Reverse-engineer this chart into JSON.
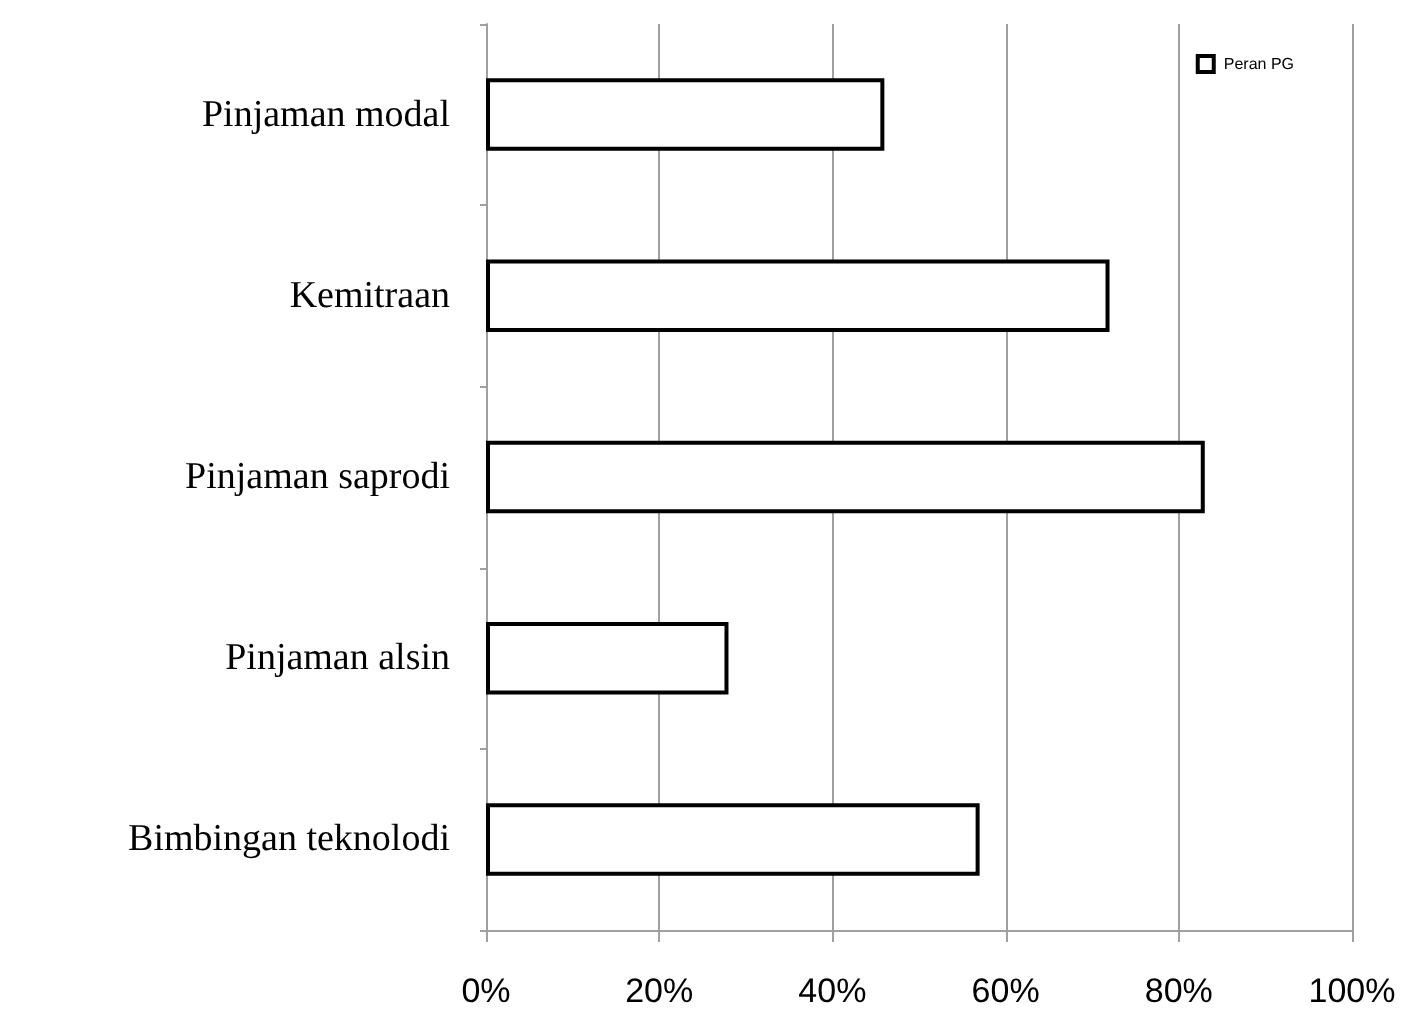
{
  "chart_data": {
    "type": "bar",
    "orientation": "horizontal",
    "categories": [
      "Pinjaman modal",
      "Kemitraan",
      "Pinjaman saprodi",
      "Pinjaman alsin",
      "Bimbingan teknolodi"
    ],
    "series": [
      {
        "name": "Peran PG",
        "color": "#ffffff",
        "values": [
          46,
          72,
          83,
          28,
          57
        ]
      }
    ],
    "xlim": [
      0,
      100
    ],
    "xticks": [
      {
        "value": 0,
        "label": "0%"
      },
      {
        "value": 20,
        "label": "20%"
      },
      {
        "value": 40,
        "label": "40%"
      },
      {
        "value": 60,
        "label": "60%"
      },
      {
        "value": 80,
        "label": "80%"
      },
      {
        "value": 100,
        "label": "100%"
      }
    ],
    "grid": "x",
    "legend": "top right"
  }
}
